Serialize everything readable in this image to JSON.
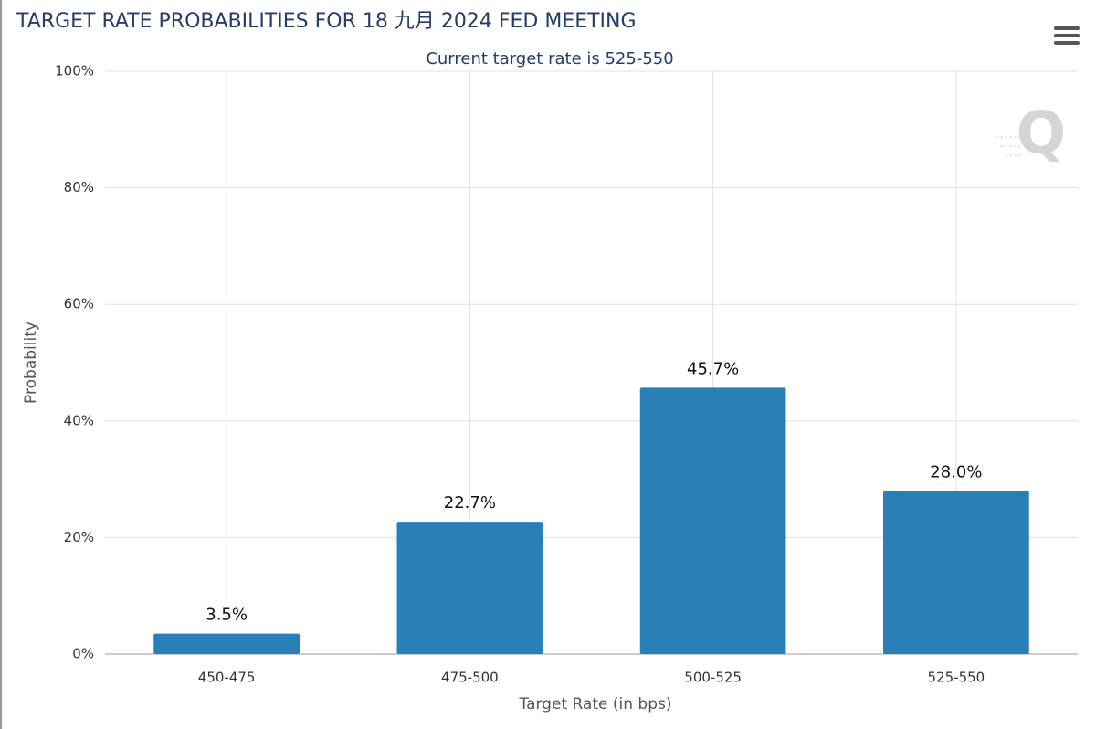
{
  "chart_data": {
    "type": "bar",
    "title": "TARGET RATE PROBABILITIES FOR 18 九月 2024 FED MEETING",
    "subtitle": "Current target rate is 525-550",
    "x_label": "Target Rate (in bps)",
    "y_label": "Probability",
    "categories": [
      "450-475",
      "475-500",
      "500-525",
      "525-550"
    ],
    "values": [
      3.5,
      22.7,
      45.7,
      28.0
    ],
    "value_labels": [
      "3.5%",
      "22.7%",
      "45.7%",
      "28.0%"
    ],
    "color": "#2980b9",
    "ylim": [
      0,
      100
    ],
    "yticks": [
      {
        "value": 0,
        "label": "0%"
      },
      {
        "value": 20,
        "label": "20%"
      },
      {
        "value": 40,
        "label": "40%"
      },
      {
        "value": 60,
        "label": "60%"
      },
      {
        "value": 80,
        "label": "80%"
      },
      {
        "value": 100,
        "label": "100%"
      }
    ],
    "grid": true
  }
}
